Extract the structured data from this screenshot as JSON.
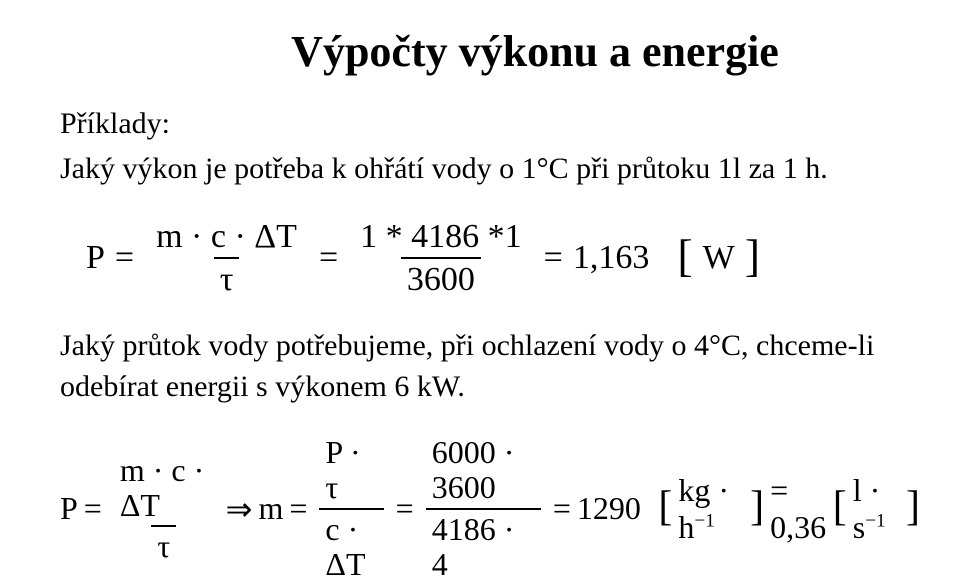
{
  "title": "Výpočty výkonu a energie",
  "examples_label": "Příklady:",
  "q1": "Jaký výkon je potřeba k ohřátí vody o 1°C při průtoku 1l za 1 h.",
  "eq1": {
    "lhs": "P",
    "frac1": {
      "num": "m · c · ΔT",
      "den": "τ"
    },
    "frac2": {
      "num": "1 * 4186 *1",
      "den": "3600"
    },
    "result": "1,163",
    "unit": "W"
  },
  "q2": "Jaký průtok vody potřebujeme, při ochlazení vody o 4°C, chceme-li odebírat energii s výkonem 6 kW.",
  "eq2": {
    "lhs": "P",
    "frac1": {
      "num": "m · c · ΔT",
      "den": "τ"
    },
    "implies": "⇒",
    "mid": "m",
    "frac2": {
      "num": "P · τ",
      "den": "c · ΔT"
    },
    "frac3": {
      "num": "6000 · 3600",
      "den": "4186 · 4"
    },
    "result": "1290",
    "unit1_pre": "kg · h",
    "unit1_exp": "−1",
    "eq_mid": "= 0,36",
    "unit2_pre": "l · s",
    "unit2_exp": "−1"
  },
  "colors": {
    "text": "#000000",
    "bg": "#ffffff"
  }
}
